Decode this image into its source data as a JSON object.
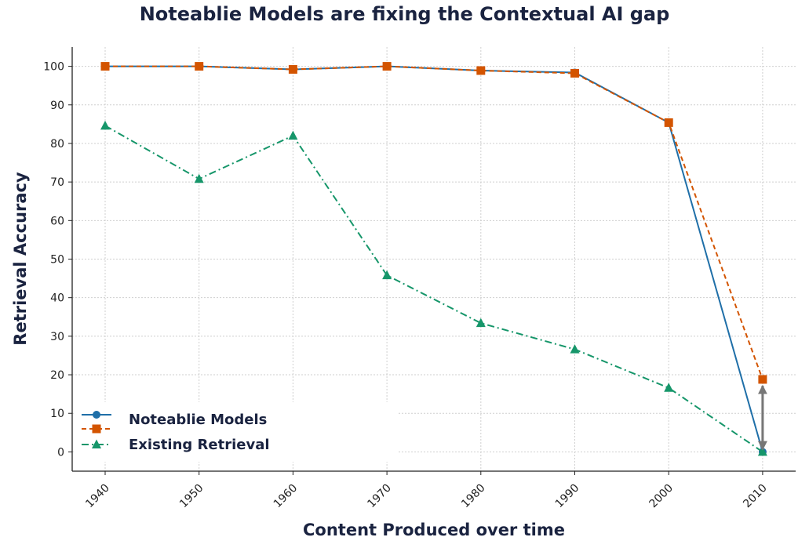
{
  "chart_data": {
    "type": "line",
    "title": "Noteablie Models are fixing the Contextual AI gap",
    "xlabel": "Content Produced over time",
    "ylabel": "Retrieval Accuracy",
    "x": [
      "1940",
      "1950",
      "1960",
      "1970",
      "1980",
      "1990",
      "2000",
      "2010"
    ],
    "yticks": [
      0,
      10,
      20,
      30,
      40,
      50,
      60,
      70,
      80,
      90,
      100
    ],
    "ylim": [
      -5,
      105
    ],
    "grid": true,
    "legend_position": "lower-left",
    "series": [
      {
        "name": "Noteablie Models",
        "values": [
          100,
          100,
          99.2,
          100,
          98.9,
          98.4,
          85.4,
          0
        ],
        "color": "#1f6fa8",
        "marker": "circle",
        "dash": "solid"
      },
      {
        "name": "Existing Retrieval",
        "values": [
          100,
          100,
          99.2,
          100,
          98.9,
          98.2,
          85.4,
          18.8
        ],
        "color": "#d35400",
        "marker": "square",
        "dash": "dashed",
        "legend": false
      },
      {
        "name": "Existing Retrieval",
        "values": [
          84.6,
          70.8,
          82.0,
          45.8,
          33.4,
          26.6,
          16.6,
          0
        ],
        "color": "#16966a",
        "marker": "triangle",
        "dash": "dashdot"
      }
    ],
    "annotations": [
      {
        "type": "double-arrow",
        "x": "2010",
        "y_from": 0,
        "y_to": 18.8,
        "color": "#777777"
      }
    ]
  }
}
